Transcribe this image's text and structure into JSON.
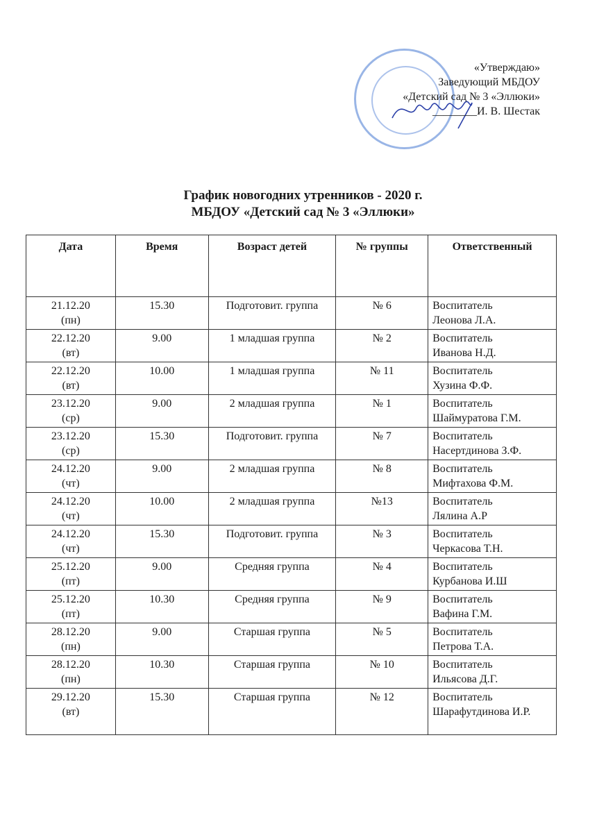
{
  "approval": {
    "line1": "«Утверждаю»",
    "line2": "Заведующий МБДОУ",
    "line3": "«Детский сад № 3 «Эллюки»",
    "line4": "И. В. Шестак"
  },
  "title": {
    "line1": "График новогодних утренников - 2020 г.",
    "line2": "МБДОУ «Детский сад № 3 «Эллюки»"
  },
  "table": {
    "headers": [
      "Дата",
      "Время",
      "Возраст детей",
      "№ группы",
      "Ответственный"
    ],
    "rows": [
      {
        "date": "21.12.20",
        "day": "(пн)",
        "time": "15.30",
        "age": "Подготовит. группа",
        "group": "№ 6",
        "role": "Воспитатель",
        "name": "Леонова Л.А."
      },
      {
        "date": "22.12.20",
        "day": "(вт)",
        "time": "9.00",
        "age": "1 младшая группа",
        "group": "№ 2",
        "role": "Воспитатель",
        "name": "Иванова Н.Д."
      },
      {
        "date": "22.12.20",
        "day": "(вт)",
        "time": "10.00",
        "age": "1 младшая группа",
        "group": "№ 11",
        "role": "Воспитатель",
        "name": "Хузина Ф.Ф."
      },
      {
        "date": "23.12.20",
        "day": "(ср)",
        "time": "9.00",
        "age": "2 младшая группа",
        "group": "№ 1",
        "role": "Воспитатель",
        "name": "Шаймуратова Г.М."
      },
      {
        "date": "23.12.20",
        "day": "(ср)",
        "time": "15.30",
        "age": "Подготовит. группа",
        "group": "№ 7",
        "role": "Воспитатель",
        "name": "Насертдинова З.Ф."
      },
      {
        "date": "24.12.20",
        "day": "(чт)",
        "time": "9.00",
        "age": "2 младшая группа",
        "group": "№ 8",
        "role": "Воспитатель",
        "name": "Мифтахова Ф.М."
      },
      {
        "date": "24.12.20",
        "day": "(чт)",
        "time": "10.00",
        "age": "2 младшая группа",
        "group": "№13",
        "role": "Воспитатель",
        "name": "Лялина А.Р"
      },
      {
        "date": "24.12.20",
        "day": "(чт)",
        "time": "15.30",
        "age": "Подготовит. группа",
        "group": "№ 3",
        "role": "Воспитатель",
        "name": "Черкасова Т.Н."
      },
      {
        "date": "25.12.20",
        "day": "(пт)",
        "time": "9.00",
        "age": "Средняя группа",
        "group": "№ 4",
        "role": "Воспитатель",
        "name": "Курбанова И.Ш"
      },
      {
        "date": "25.12.20",
        "day": "(пт)",
        "time": "10.30",
        "age": "Средняя группа",
        "group": "№ 9",
        "role": "Воспитатель",
        "name": "Вафина Г.М."
      },
      {
        "date": "28.12.20",
        "day": "(пн)",
        "time": "9.00",
        "age": "Старшая группа",
        "group": "№ 5",
        "role": "Воспитатель",
        "name": "Петрова Т.А."
      },
      {
        "date": "28.12.20",
        "day": "(пн)",
        "time": "10.30",
        "age": "Старшая группа",
        "group": "№ 10",
        "role": "Воспитатель",
        "name": "Ильясова Д.Г."
      },
      {
        "date": "29.12.20",
        "day": "(вт)",
        "time": "15.30",
        "age": "Старшая группа",
        "group": "№ 12",
        "role": "Воспитатель",
        "name": "Шарафутдинова И.Р."
      }
    ]
  },
  "colors": {
    "stamp": "#4678d2",
    "signature": "#2a3fa8"
  }
}
